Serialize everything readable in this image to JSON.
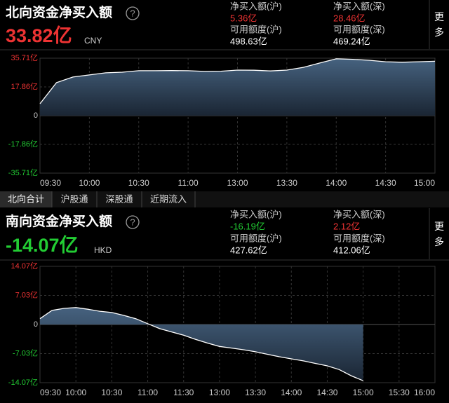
{
  "north": {
    "title": "北向资金净买入额",
    "help": "?",
    "amount": "33.82亿",
    "currency": "CNY",
    "stats": [
      {
        "label": "净买入额(沪)",
        "value": "5.36亿"
      },
      {
        "label": "净买入额(深)",
        "value": "28.46亿"
      },
      {
        "label": "可用额度(沪)",
        "value": "498.63亿"
      },
      {
        "label": "可用额度(深)",
        "value": "469.24亿"
      }
    ],
    "more": "更多"
  },
  "tabs": [
    "北向合计",
    "沪股通",
    "深股通",
    "近期流入"
  ],
  "south": {
    "title": "南向资金净买入额",
    "help": "?",
    "amount": "-14.07亿",
    "currency": "HKD",
    "stats": [
      {
        "label": "净买入额(沪)",
        "value": "-16.19亿"
      },
      {
        "label": "净买入额(深)",
        "value": "2.12亿"
      },
      {
        "label": "可用额度(沪)",
        "value": "427.62亿"
      },
      {
        "label": "可用额度(深)",
        "value": "412.06亿"
      }
    ],
    "more": "更多"
  },
  "chart_data": [
    {
      "type": "area",
      "categories": [
        "09:30",
        null,
        null,
        "10:00",
        null,
        null,
        "10:30",
        null,
        null,
        "11:00",
        null,
        null,
        "13:00",
        null,
        null,
        "13:30",
        null,
        null,
        "14:00",
        null,
        null,
        "14:30",
        null,
        null,
        "15:00"
      ],
      "values": [
        7.4,
        20.5,
        24.0,
        25.3,
        26.6,
        27.0,
        27.9,
        27.9,
        28.0,
        27.9,
        27.5,
        27.6,
        28.3,
        28.2,
        27.8,
        28.3,
        30.0,
        32.7,
        35.3,
        35.0,
        34.4,
        33.5,
        33.2,
        33.5,
        33.8
      ],
      "color": "#ffffff",
      "ylim": [
        -35.71,
        35.71
      ],
      "yticks": [
        {
          "value": -35.71,
          "label": "-35.71亿"
        },
        {
          "value": -17.86,
          "label": "-17.86亿"
        },
        0,
        {
          "value": 17.86,
          "label": "17.86亿"
        },
        {
          "value": 35.71,
          "label": "35.71亿"
        }
      ],
      "grid": true
    },
    {
      "type": "area",
      "categories": [
        "09:30",
        null,
        null,
        "10:00",
        null,
        null,
        "10:30",
        null,
        null,
        "11:00",
        null,
        null,
        "11:30",
        null,
        null,
        "13:00",
        null,
        null,
        "13:30",
        null,
        null,
        "14:00",
        null,
        null,
        "14:30",
        null,
        null,
        "15:00",
        null,
        null,
        "15:30",
        null,
        null,
        "16:00"
      ],
      "values": [
        1.4,
        3.4,
        3.9,
        4.1,
        3.7,
        3.2,
        2.9,
        2.2,
        1.4,
        0.2,
        -1.0,
        -1.8,
        -2.6,
        -3.6,
        -4.5,
        -5.3,
        -5.7,
        -6.1,
        -6.6,
        -7.2,
        -7.8,
        -8.3,
        -8.8,
        -9.4,
        -10.0,
        -10.9,
        -12.4,
        -13.6,
        null,
        null,
        null,
        null,
        null,
        null
      ],
      "color": "#ffffff",
      "ylim": [
        -14.07,
        14.07
      ],
      "yticks": [
        {
          "value": -14.07,
          "label": "-14.07亿"
        },
        {
          "value": -7.03,
          "label": "-7.03亿"
        },
        0,
        {
          "value": 7.03,
          "label": "7.03亿"
        },
        {
          "value": 14.07,
          "label": "14.07亿"
        }
      ],
      "grid": true
    }
  ]
}
